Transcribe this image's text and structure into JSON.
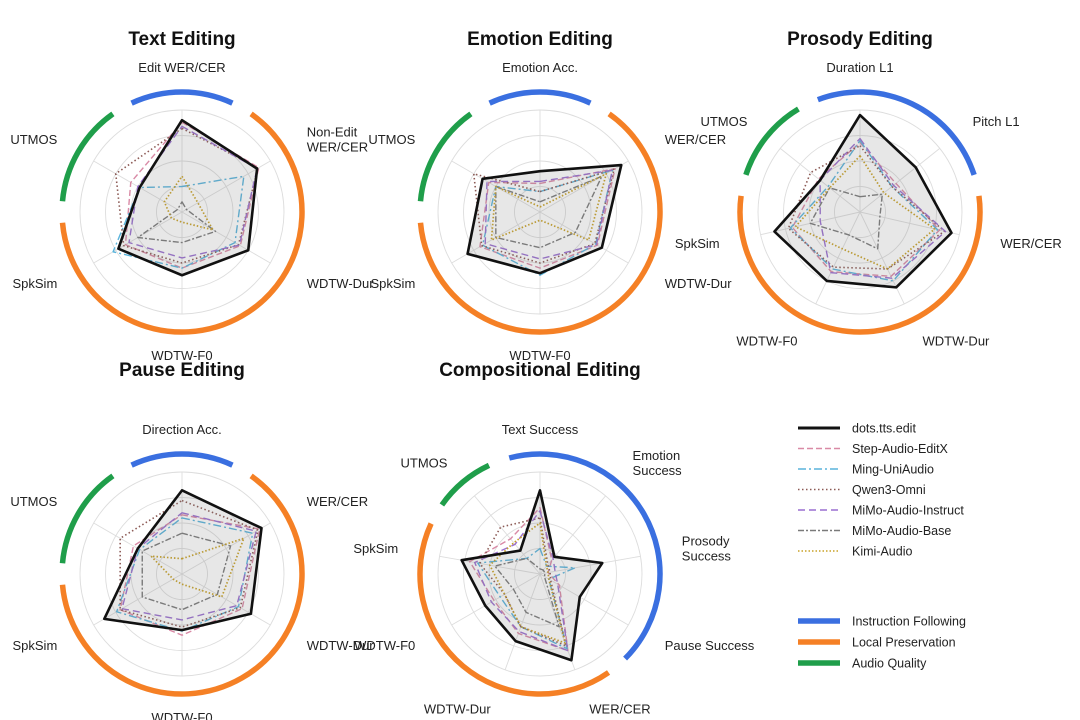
{
  "colors": {
    "instruction_following": "#3a6fe0",
    "local_preservation": "#f58025",
    "audio_quality": "#1f9e4a"
  },
  "series_styles": [
    {
      "name": "dots.tts.edit",
      "color": "#111111",
      "dash": "",
      "width": 2.6,
      "fill": "rgba(120,120,120,0.18)"
    },
    {
      "name": "Step-Audio-EditX",
      "color": "#d98aa6",
      "dash": "6,3",
      "width": 1.4
    },
    {
      "name": "Ming-UniAudio",
      "color": "#5ab4dc",
      "dash": "8,3,2,3",
      "width": 1.4
    },
    {
      "name": "Qwen3-Omni",
      "color": "#8c5a55",
      "dash": "1.5,2.5",
      "width": 1.6
    },
    {
      "name": "MiMo-Audio-Instruct",
      "color": "#9a6fd0",
      "dash": "7,4",
      "width": 1.4
    },
    {
      "name": "MiMo-Audio-Base",
      "color": "#7a7a7a",
      "dash": "6,2,2,2",
      "width": 1.4
    },
    {
      "name": "Kimi-Audio",
      "color": "#c9a227",
      "dash": "1.5,2",
      "width": 1.7
    }
  ],
  "legend": {
    "series": [
      "dots.tts.edit",
      "Step-Audio-EditX",
      "Ming-UniAudio",
      "Qwen3-Omni",
      "MiMo-Audio-Instruct",
      "MiMo-Audio-Base",
      "Kimi-Audio"
    ],
    "groups": [
      "Instruction Following",
      "Local Preservation",
      "Audio Quality"
    ]
  },
  "chart_data": [
    {
      "type": "radar",
      "title": "Text Editing",
      "axes": [
        "Edit WER/CER",
        "Non-Edit\nWER/CER",
        "WDTW-Dur",
        "WDTW-F0",
        "SpkSim",
        "UTMOS"
      ],
      "groups": [
        "instruction_following",
        "local_preservation",
        "local_preservation",
        "local_preservation",
        "local_preservation",
        "audio_quality"
      ],
      "rlim": [
        0,
        1
      ],
      "grid": true,
      "series": [
        {
          "name": "dots.tts.edit",
          "values": [
            0.9,
            0.85,
            0.75,
            0.62,
            0.72,
            0.48
          ]
        },
        {
          "name": "Step-Audio-EditX",
          "values": [
            0.88,
            0.87,
            0.66,
            0.55,
            0.64,
            0.58
          ]
        },
        {
          "name": "Ming-UniAudio",
          "values": [
            0.25,
            0.7,
            0.6,
            0.55,
            0.78,
            0.48
          ]
        },
        {
          "name": "Qwen3-Omni",
          "values": [
            0.82,
            0.86,
            0.64,
            0.5,
            0.66,
            0.75
          ]
        },
        {
          "name": "MiMo-Audio-Instruct",
          "values": [
            0.84,
            0.85,
            0.65,
            0.45,
            0.6,
            0.5
          ]
        },
        {
          "name": "MiMo-Audio-Base",
          "values": [
            0.1,
            0.05,
            0.38,
            0.3,
            0.5,
            0.05
          ]
        },
        {
          "name": "Kimi-Audio",
          "values": [
            0.35,
            0.18,
            0.35,
            0.1,
            0.12,
            0.2
          ]
        }
      ]
    },
    {
      "type": "radar",
      "title": "Emotion Editing",
      "axes": [
        "Emotion Acc.",
        "WER/CER",
        "WDTW-Dur",
        "WDTW-F0",
        "SpkSim",
        "UTMOS"
      ],
      "groups": [
        "instruction_following",
        "local_preservation",
        "local_preservation",
        "local_preservation",
        "local_preservation",
        "audio_quality"
      ],
      "rlim": [
        0,
        1
      ],
      "grid": true,
      "series": [
        {
          "name": "dots.tts.edit",
          "values": [
            0.4,
            0.92,
            0.7,
            0.6,
            0.82,
            0.65
          ]
        },
        {
          "name": "Step-Audio-EditX",
          "values": [
            0.28,
            0.85,
            0.65,
            0.55,
            0.68,
            0.58
          ]
        },
        {
          "name": "Ming-UniAudio",
          "values": [
            0.2,
            0.82,
            0.63,
            0.62,
            0.65,
            0.5
          ]
        },
        {
          "name": "Qwen3-Omni",
          "values": [
            0.2,
            0.84,
            0.62,
            0.5,
            0.66,
            0.75
          ]
        },
        {
          "name": "MiMo-Audio-Instruct",
          "values": [
            0.3,
            0.82,
            0.64,
            0.46,
            0.62,
            0.6
          ]
        },
        {
          "name": "MiMo-Audio-Base",
          "values": [
            0.1,
            0.7,
            0.4,
            0.35,
            0.5,
            0.5
          ]
        },
        {
          "name": "Kimi-Audio",
          "values": [
            0.05,
            0.75,
            0.55,
            0.08,
            0.55,
            0.5
          ]
        }
      ]
    },
    {
      "type": "radar",
      "title": "Prosody Editing",
      "axes": [
        "Duration L1",
        "Pitch L1",
        "WER/CER",
        "WDTW-Dur",
        "WDTW-F0",
        "SpkSim",
        "UTMOS"
      ],
      "groups": [
        "instruction_following",
        "instruction_following",
        "local_preservation",
        "local_preservation",
        "local_preservation",
        "local_preservation",
        "audio_quality"
      ],
      "rlim": [
        0,
        1
      ],
      "grid": true,
      "series": [
        {
          "name": "dots.tts.edit",
          "values": [
            0.95,
            0.7,
            0.92,
            0.82,
            0.75,
            0.86,
            0.5
          ]
        },
        {
          "name": "Step-Audio-EditX",
          "values": [
            0.68,
            0.45,
            0.8,
            0.7,
            0.65,
            0.68,
            0.52
          ]
        },
        {
          "name": "Ming-UniAudio",
          "values": [
            0.7,
            0.4,
            0.78,
            0.75,
            0.62,
            0.7,
            0.4
          ]
        },
        {
          "name": "Qwen3-Omni",
          "values": [
            0.65,
            0.4,
            0.85,
            0.62,
            0.6,
            0.72,
            0.62
          ]
        },
        {
          "name": "MiMo-Audio-Instruct",
          "values": [
            0.72,
            0.42,
            0.86,
            0.72,
            0.66,
            0.4,
            0.5
          ]
        },
        {
          "name": "MiMo-Audio-Base",
          "values": [
            0.15,
            0.28,
            0.2,
            0.4,
            0.25,
            0.5,
            0.38
          ]
        },
        {
          "name": "Kimi-Audio",
          "values": [
            0.55,
            0.3,
            0.75,
            0.62,
            0.4,
            0.65,
            0.38
          ]
        }
      ]
    },
    {
      "type": "radar",
      "title": "Pause Editing",
      "axes": [
        "Direction Acc.",
        "WER/CER",
        "WDTW-Dur",
        "WDTW-F0",
        "SpkSim",
        "UTMOS"
      ],
      "groups": [
        "instruction_following",
        "local_preservation",
        "local_preservation",
        "local_preservation",
        "local_preservation",
        "audio_quality"
      ],
      "rlim": [
        0,
        1
      ],
      "grid": true,
      "series": [
        {
          "name": "dots.tts.edit",
          "values": [
            0.82,
            0.9,
            0.78,
            0.55,
            0.88,
            0.5
          ]
        },
        {
          "name": "Step-Audio-EditX",
          "values": [
            0.58,
            0.88,
            0.68,
            0.6,
            0.7,
            0.55
          ]
        },
        {
          "name": "Ming-UniAudio",
          "values": [
            0.55,
            0.8,
            0.64,
            0.56,
            0.74,
            0.48
          ]
        },
        {
          "name": "Qwen3-Omni",
          "values": [
            0.72,
            0.86,
            0.66,
            0.52,
            0.7,
            0.7
          ]
        },
        {
          "name": "MiMo-Audio-Instruct",
          "values": [
            0.6,
            0.84,
            0.62,
            0.45,
            0.68,
            0.5
          ]
        },
        {
          "name": "MiMo-Audio-Base",
          "values": [
            0.4,
            0.55,
            0.4,
            0.35,
            0.45,
            0.45
          ]
        },
        {
          "name": "Kimi-Audio",
          "values": [
            0.15,
            0.7,
            0.45,
            0.1,
            0.1,
            0.35
          ]
        }
      ]
    },
    {
      "type": "radar",
      "title": "Compositional Editing",
      "axes": [
        "Text Success",
        "Emotion\nSuccess",
        "Prosody\nSuccess",
        "Pause Success",
        "WER/CER",
        "WDTW-Dur",
        "WDTW-F0",
        "SpkSim",
        "UTMOS"
      ],
      "groups": [
        "instruction_following",
        "instruction_following",
        "instruction_following",
        "instruction_following",
        "local_preservation",
        "local_preservation",
        "local_preservation",
        "local_preservation",
        "audio_quality"
      ],
      "rlim": [
        0,
        1
      ],
      "grid": true,
      "series": [
        {
          "name": "dots.tts.edit",
          "values": [
            0.82,
            0.22,
            0.62,
            0.45,
            0.9,
            0.7,
            0.62,
            0.78,
            0.3
          ]
        },
        {
          "name": "Step-Audio-EditX",
          "values": [
            0.65,
            0.18,
            0.08,
            0.22,
            0.8,
            0.62,
            0.52,
            0.7,
            0.45
          ]
        },
        {
          "name": "Ming-UniAudio",
          "values": [
            0.25,
            0.1,
            0.35,
            0.1,
            0.78,
            0.55,
            0.45,
            0.62,
            0.2
          ]
        },
        {
          "name": "Qwen3-Omni",
          "values": [
            0.55,
            0.12,
            0.1,
            0.12,
            0.75,
            0.55,
            0.4,
            0.6,
            0.6
          ]
        },
        {
          "name": "MiMo-Audio-Instruct",
          "values": [
            0.62,
            0.2,
            0.15,
            0.2,
            0.8,
            0.6,
            0.55,
            0.65,
            0.38
          ]
        },
        {
          "name": "MiMo-Audio-Base",
          "values": [
            0.05,
            0.05,
            0.05,
            0.05,
            0.55,
            0.4,
            0.3,
            0.45,
            0.2
          ]
        },
        {
          "name": "Kimi-Audio",
          "values": [
            0.5,
            0.1,
            0.08,
            0.1,
            0.72,
            0.55,
            0.4,
            0.5,
            0.4
          ]
        }
      ]
    }
  ]
}
